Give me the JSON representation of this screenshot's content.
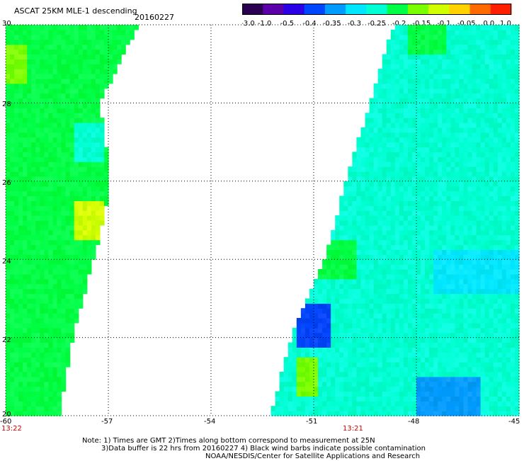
{
  "header": {
    "title": "ASCAT 25KM MLE-1 descending",
    "date": "20160227"
  },
  "colorbar": {
    "tick_labels": [
      "-3.0",
      "-1.0",
      "-0.5",
      "-0.4",
      "-0.35",
      "-0.3",
      "-0.25",
      "-0.2",
      "-0.15",
      "-0.1",
      "-0.05",
      "0.0",
      "1.0"
    ],
    "colors": [
      "#2a0050",
      "#5a00a8",
      "#2a00e6",
      "#0046ff",
      "#009bff",
      "#00e6ff",
      "#00ffd2",
      "#00ff46",
      "#7aff00",
      "#d2ff00",
      "#ffd200",
      "#ff6a00",
      "#ff1e00"
    ]
  },
  "chart_data": {
    "type": "heatmap",
    "xlabel": "",
    "ylabel": "",
    "xlim": [
      -60,
      -45
    ],
    "ylim": [
      20,
      30
    ],
    "x_ticks": [
      "-60",
      "-57",
      "-54",
      "-51",
      "-48",
      "-45"
    ],
    "y_ticks": [
      "30",
      "28",
      "26",
      "24",
      "22",
      "20"
    ],
    "grid": true,
    "swaths": [
      {
        "time": "13:22",
        "lon_west_edge": -60.0,
        "lon_east_edge_by_lat": [
          [
            20,
            -58.5
          ],
          [
            22,
            -58.1
          ],
          [
            24,
            -57.5
          ],
          [
            25,
            -57.2
          ],
          [
            26,
            -57.0
          ],
          [
            28,
            -57.3
          ],
          [
            30,
            -56.2
          ]
        ],
        "dominant_value": "-0.2",
        "patches": [
          {
            "lat": 25.0,
            "lon_min": -58.0,
            "lon_max": -57.2,
            "value": "-0.1"
          },
          {
            "lat": 29.0,
            "lon_min": -60.0,
            "lon_max": -59.4,
            "value": "-0.15"
          },
          {
            "lat": 27.0,
            "lon_min": -58.0,
            "lon_max": -57.2,
            "value": "-0.25"
          }
        ]
      },
      {
        "time": "13:21",
        "lon_west_edge_by_lat": [
          [
            20,
            -52.2
          ],
          [
            22,
            -51.6
          ],
          [
            24,
            -50.6
          ],
          [
            26,
            -50.0
          ],
          [
            28,
            -49.3
          ],
          [
            30,
            -48.6
          ]
        ],
        "lon_east_edge": -45.0,
        "dominant_value": "-0.25",
        "patches": [
          {
            "lat": 24.0,
            "lon_min": -50.8,
            "lon_max": -49.8,
            "value": "-0.2"
          },
          {
            "lat": 22.3,
            "lon_min": -51.4,
            "lon_max": -50.6,
            "value": "-0.4"
          },
          {
            "lat": 23.7,
            "lon_min": -47.5,
            "lon_max": -45.0,
            "value": "-0.3"
          },
          {
            "lat": 20.5,
            "lon_min": -48.0,
            "lon_max": -46.2,
            "value": "-0.35"
          },
          {
            "lat": 21.0,
            "lon_min": -51.5,
            "lon_max": -51.0,
            "value": "-0.15"
          },
          {
            "lat": 29.8,
            "lon_min": -48.2,
            "lon_max": -47.2,
            "value": "-0.2"
          }
        ]
      }
    ]
  },
  "footer": {
    "note_line1": "Note: 1) Times are GMT 2)Times along bottom correspond to measurement at 25N",
    "note_line2": "3)Data buffer is 22 hrs from 20160227 4) Black wind barbs indicate possible contamination",
    "note_line3": "NOAA/NESDIS/Center for Satellite Applications and Research"
  }
}
